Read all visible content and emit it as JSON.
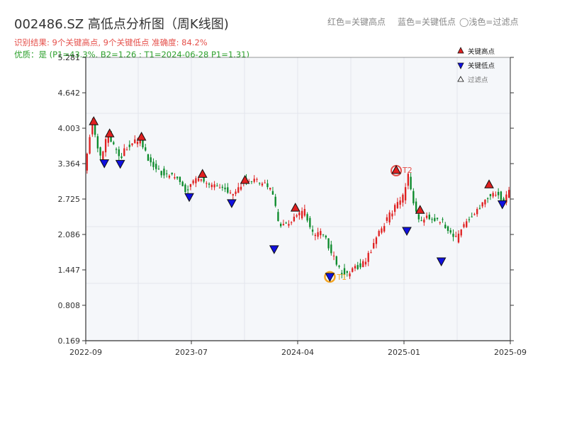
{
  "header": {
    "title": "002486.SZ 高低点分析图（周K线图)",
    "result_line": "识别结果: 9个关键高点, 9个关键低点   准确度: 84.2%",
    "quality_line": "优质：是  (P1=43.3%, B2=1.26 ; T1=2024-06-28 P1=1.31)",
    "color_legend": [
      "红色=关键高点",
      "蓝色=关键低点",
      "◯浅色=过滤点"
    ]
  },
  "colors": {
    "up": "#e02020",
    "down": "#0a8a2a",
    "high_marker": "#e02020",
    "low_marker": "#1010e0",
    "filtered_marker": "#ffffff",
    "circle": "#f5a623",
    "t2_circle": "#e5504b",
    "plot_bg": "#f5f7fa",
    "grid": "#e2e6ec",
    "axis": "#333333"
  },
  "chart_data": {
    "type": "candlestick",
    "y_ticks": [
      "0.169",
      "0.808",
      "1.447",
      "2.086",
      "2.725",
      "3.364",
      "4.003",
      "4.642",
      "5.281"
    ],
    "x_ticks": [
      "2022-09",
      "2023-07",
      "2024-04",
      "2025-01",
      "2025-09"
    ],
    "ylim": [
      0.169,
      5.281
    ],
    "x_range_weeks": [
      0,
      160
    ],
    "legend": {
      "position": "top-right",
      "items": [
        {
          "label": "关键高点",
          "marker": "high"
        },
        {
          "label": "关键低点",
          "marker": "low"
        },
        {
          "label": "过滤点",
          "marker": "filtered"
        }
      ]
    },
    "anchors": [
      [
        0,
        3.25
      ],
      [
        3,
        4.15
      ],
      [
        6,
        3.45
      ],
      [
        9,
        3.9
      ],
      [
        13,
        3.45
      ],
      [
        16,
        3.65
      ],
      [
        21,
        3.82
      ],
      [
        25,
        3.35
      ],
      [
        30,
        3.18
      ],
      [
        34,
        3.15
      ],
      [
        38,
        2.88
      ],
      [
        43,
        3.1
      ],
      [
        48,
        2.96
      ],
      [
        53,
        2.9
      ],
      [
        56,
        2.78
      ],
      [
        60,
        3.05
      ],
      [
        68,
        3.02
      ],
      [
        71,
        2.8
      ],
      [
        73,
        2.3
      ],
      [
        76,
        2.25
      ],
      [
        80,
        2.4
      ],
      [
        83,
        2.5
      ],
      [
        86,
        2.08
      ],
      [
        90,
        2.1
      ],
      [
        93,
        1.75
      ],
      [
        96,
        1.45
      ],
      [
        99,
        1.36
      ],
      [
        102,
        1.48
      ],
      [
        106,
        1.6
      ],
      [
        110,
        2.05
      ],
      [
        114,
        2.35
      ],
      [
        117,
        2.6
      ],
      [
        120,
        2.75
      ],
      [
        122,
        3.15
      ],
      [
        124,
        2.65
      ],
      [
        126,
        2.3
      ],
      [
        129,
        2.4
      ],
      [
        132,
        2.38
      ],
      [
        135,
        2.3
      ],
      [
        137,
        2.18
      ],
      [
        140,
        2.0
      ],
      [
        143,
        2.25
      ],
      [
        146,
        2.42
      ],
      [
        149,
        2.55
      ],
      [
        152,
        2.76
      ],
      [
        155,
        2.85
      ],
      [
        158,
        2.72
      ],
      [
        160,
        2.86
      ]
    ],
    "key_highs": [
      {
        "x": 3,
        "y": 4.13
      },
      {
        "x": 9,
        "y": 3.91
      },
      {
        "x": 21,
        "y": 3.85
      },
      {
        "x": 44,
        "y": 3.18
      },
      {
        "x": 60,
        "y": 3.07
      },
      {
        "x": 79,
        "y": 2.57
      },
      {
        "x": 117,
        "y": 3.25,
        "label": "T2"
      },
      {
        "x": 126,
        "y": 2.53
      },
      {
        "x": 152,
        "y": 2.99
      }
    ],
    "key_lows": [
      {
        "x": 7,
        "y": 3.37
      },
      {
        "x": 13,
        "y": 3.36
      },
      {
        "x": 39,
        "y": 2.76
      },
      {
        "x": 55,
        "y": 2.65
      },
      {
        "x": 71,
        "y": 1.82
      },
      {
        "x": 92,
        "y": 1.32,
        "label": "T1"
      },
      {
        "x": 121,
        "y": 2.15
      },
      {
        "x": 134,
        "y": 1.6
      },
      {
        "x": 157,
        "y": 2.63
      }
    ]
  }
}
